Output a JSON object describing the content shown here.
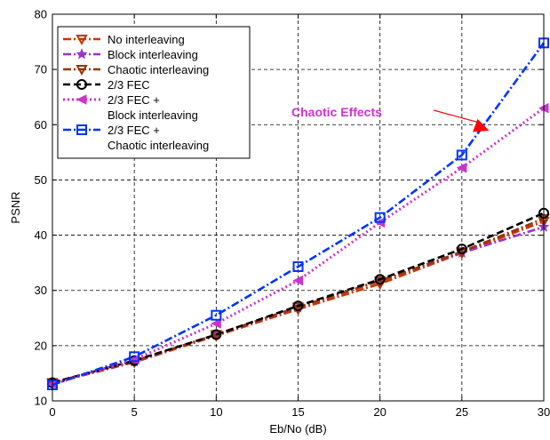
{
  "chart_data": {
    "type": "line",
    "title": "",
    "xlabel": "Eb/No (dB)",
    "ylabel": "PSNR",
    "xlim": [
      0,
      30
    ],
    "ylim": [
      10,
      80
    ],
    "xticks": [
      0,
      5,
      10,
      15,
      20,
      25,
      30
    ],
    "yticks": [
      10,
      20,
      30,
      40,
      50,
      60,
      70,
      80
    ],
    "grid": true,
    "legend_position": "top-left",
    "x": [
      0,
      5,
      10,
      15,
      20,
      25,
      30
    ],
    "series": [
      {
        "name": "No interleaving",
        "values": [
          13.2,
          17.0,
          21.8,
          26.6,
          31.2,
          36.8,
          42.5
        ],
        "color": "#cc3300",
        "marker": "triangle-down",
        "dash": "dash-dot",
        "legend_lines": [
          "No interleaving"
        ]
      },
      {
        "name": "Block interleaving",
        "values": [
          13.3,
          17.1,
          22.0,
          26.9,
          31.8,
          36.8,
          41.5
        ],
        "color": "#9933cc",
        "marker": "star",
        "dash": "dash-dot",
        "legend_lines": [
          "Block interleaving"
        ]
      },
      {
        "name": "Chaotic interleaving",
        "values": [
          13.3,
          17.2,
          22.0,
          27.0,
          31.7,
          37.0,
          43.0
        ],
        "color": "#993300",
        "marker": "triangle-down",
        "dash": "dash-dot",
        "legend_lines": [
          "Chaotic interleaving"
        ]
      },
      {
        "name": "2/3 FEC",
        "values": [
          13.3,
          17.3,
          22.0,
          27.2,
          32.0,
          37.5,
          44.0
        ],
        "color": "#000000",
        "marker": "circle",
        "dash": "dash",
        "legend_lines": [
          "2/3 FEC"
        ]
      },
      {
        "name": "2/3 FEC + Block interleaving",
        "values": [
          13.0,
          17.5,
          24.0,
          31.8,
          42.3,
          52.2,
          63.0
        ],
        "color": "#cc33cc",
        "marker": "triangle-left",
        "dash": "dot",
        "legend_lines": [
          "2/3 FEC +",
          "Block interleaving"
        ]
      },
      {
        "name": "2/3 FEC + Chaotic interleaving",
        "values": [
          12.9,
          18.0,
          25.5,
          34.3,
          43.2,
          54.5,
          74.8
        ],
        "color": "#0033ff",
        "marker": "square",
        "dash": "dash-dot",
        "legend_lines": [
          "2/3 FEC +",
          "Chaotic interleaving"
        ]
      }
    ],
    "annotation": {
      "text": "Chaotic Effects",
      "color": "#cc33cc",
      "arrow_color": "#ff0000",
      "target": [
        26.6,
        59.0
      ]
    }
  }
}
